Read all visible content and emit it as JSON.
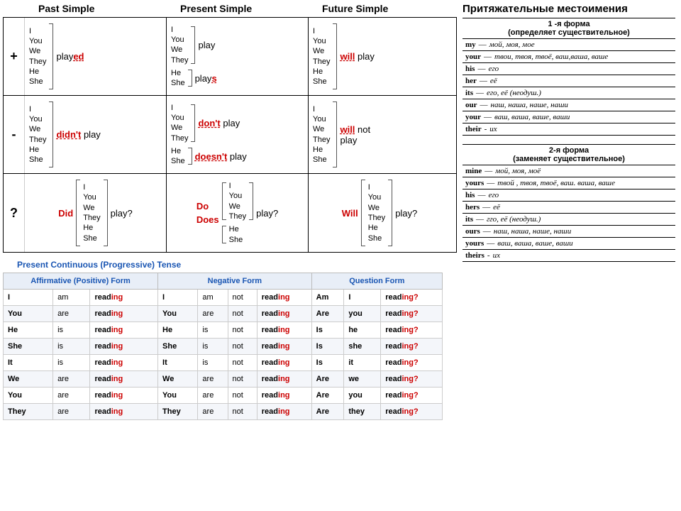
{
  "tenses": {
    "headers": [
      "Past Simple",
      "Present Simple",
      "Future Simple"
    ],
    "row_labels": [
      "+",
      "-",
      "?"
    ],
    "pronouns_full": [
      "I",
      "You",
      "We",
      "They",
      "He",
      "She"
    ],
    "pronouns_base": [
      "I",
      "You",
      "We",
      "They"
    ],
    "pronouns_3rd": [
      "He",
      "She"
    ],
    "past_pos": {
      "stem": "play",
      "suffix": "ed"
    },
    "present_pos_base": {
      "verb": "play"
    },
    "present_pos_3rd": {
      "stem": "play",
      "suffix": "s"
    },
    "future_pos": {
      "aux": "will",
      "verb": "play"
    },
    "past_neg": {
      "aux": "didn't",
      "verb": "play"
    },
    "present_neg_base": {
      "aux": "don't",
      "verb": "play"
    },
    "present_neg_3rd": {
      "aux": "doesn't",
      "verb": "play"
    },
    "future_neg": {
      "aux": "will",
      "mid": "not",
      "verb": "play"
    },
    "past_q": {
      "aux": "Did",
      "verb": "play?"
    },
    "present_q_base": {
      "aux": "Do",
      "verb": "play?"
    },
    "present_q_3rd": {
      "aux": "Does"
    },
    "future_q": {
      "aux": "Will",
      "verb": "play?"
    }
  },
  "pc": {
    "title": "Present Continuous (Progressive) Tense",
    "headers": [
      "Affirmative (Positive) Form",
      "Negative Form",
      "Question Form"
    ],
    "rows": [
      {
        "s": "I",
        "be": "am",
        "stem": "read",
        "q_s": "I"
      },
      {
        "s": "You",
        "be": "are",
        "stem": "read",
        "q_s": "you"
      },
      {
        "s": "He",
        "be": "is",
        "stem": "read",
        "q_s": "he"
      },
      {
        "s": "She",
        "be": "is",
        "stem": "read",
        "q_s": "she"
      },
      {
        "s": "It",
        "be": "is",
        "stem": "read",
        "q_s": "it"
      },
      {
        "s": "We",
        "be": "are",
        "stem": "read",
        "q_s": "we"
      },
      {
        "s": "You",
        "be": "are",
        "stem": "read",
        "q_s": "you"
      },
      {
        "s": "They",
        "be": "are",
        "stem": "read",
        "q_s": "they"
      }
    ],
    "ing": "ing",
    "not": "not",
    "q_suffix": "ing?"
  },
  "poss": {
    "title": "Притяжательные местоимения",
    "form1": {
      "title": "1 -я форма",
      "sub": "(определяет существительное)",
      "items": [
        {
          "en": "my",
          "ru": "мой, моя, мое"
        },
        {
          "en": "your",
          "ru": "твои, твоя, твоё, ваш,ваша, ваше"
        },
        {
          "en": "his",
          "ru": "его"
        },
        {
          "en": "her",
          "ru": "её"
        },
        {
          "en": "its",
          "ru": "его, её (неодуш.)"
        },
        {
          "en": "our",
          "ru": "наш, наша, наше, наши"
        },
        {
          "en": "your",
          "ru": "ваш, ваша, ваше, ваши"
        },
        {
          "en": "their",
          "ru": "их",
          "dash": "-"
        }
      ]
    },
    "form2": {
      "title": "2-я форма",
      "sub": "(заменяет существительное)",
      "items": [
        {
          "en": "mine",
          "ru": "мой, моя, моё"
        },
        {
          "en": "yours",
          "ru": "твой , твоя, твоё, ваш. ваша, ваше"
        },
        {
          "en": "his",
          "ru": "его"
        },
        {
          "en": "hers",
          "ru": "её"
        },
        {
          "en": "its",
          "ru": "гго, её (неодуш.)"
        },
        {
          "en": "ours",
          "ru": "наш, наша, наше, наши"
        },
        {
          "en": "yours",
          "ru": "ваш, ваша, ваше, ваши"
        },
        {
          "en": "theirs",
          "ru": "их",
          "dash": "-"
        }
      ]
    }
  },
  "dash": "—"
}
